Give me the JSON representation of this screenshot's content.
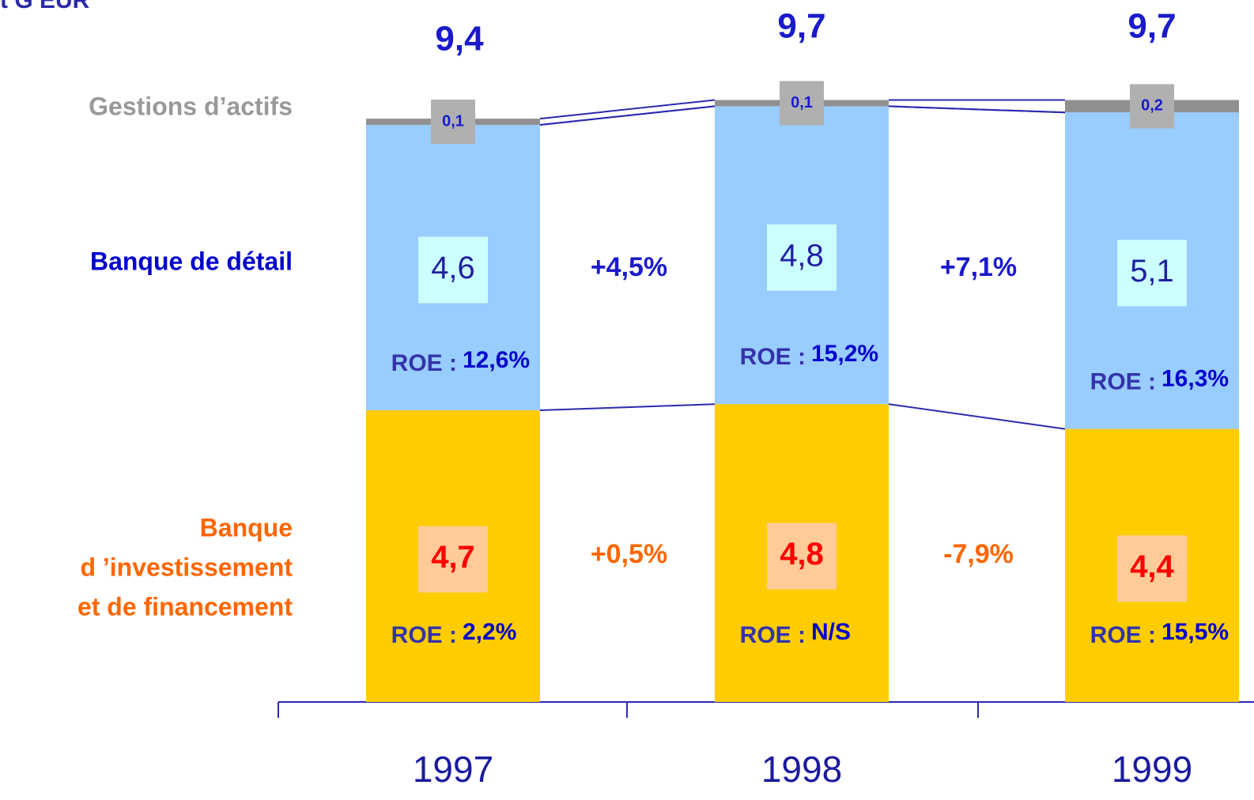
{
  "chart_data": {
    "type": "bar",
    "title": "t G EUR",
    "categories": [
      "1997",
      "1998",
      "1999"
    ],
    "totals": [
      9.4,
      9.7,
      9.7
    ],
    "total_labels": [
      "9,4",
      "9,7",
      "9,7"
    ],
    "roe_label": "ROE :",
    "series": [
      {
        "name": [
          "Banque",
          "d ’investissement",
          "et de financement"
        ],
        "color": "#ffcc00",
        "values": [
          4.7,
          4.8,
          4.4
        ],
        "value_labels": [
          "4,7",
          "4,8",
          "4,4"
        ],
        "roe": [
          "2,2%",
          "N/S",
          "15,5%"
        ],
        "growth": [
          "+0,5%",
          "-7,9%"
        ]
      },
      {
        "name": [
          "Banque de détail"
        ],
        "color": "#99ccff",
        "values": [
          4.6,
          4.8,
          5.1
        ],
        "value_labels": [
          "4,6",
          "4,8",
          "5,1"
        ],
        "roe": [
          "12,6%",
          "15,2%",
          "16,3%"
        ],
        "growth": [
          "+4,5%",
          "+7,1%"
        ]
      },
      {
        "name": [
          "Gestions d’actifs"
        ],
        "color": "#909090",
        "values": [
          0.1,
          0.1,
          0.2
        ],
        "value_labels": [
          "0,1",
          "0,1",
          "0,2"
        ]
      }
    ]
  }
}
